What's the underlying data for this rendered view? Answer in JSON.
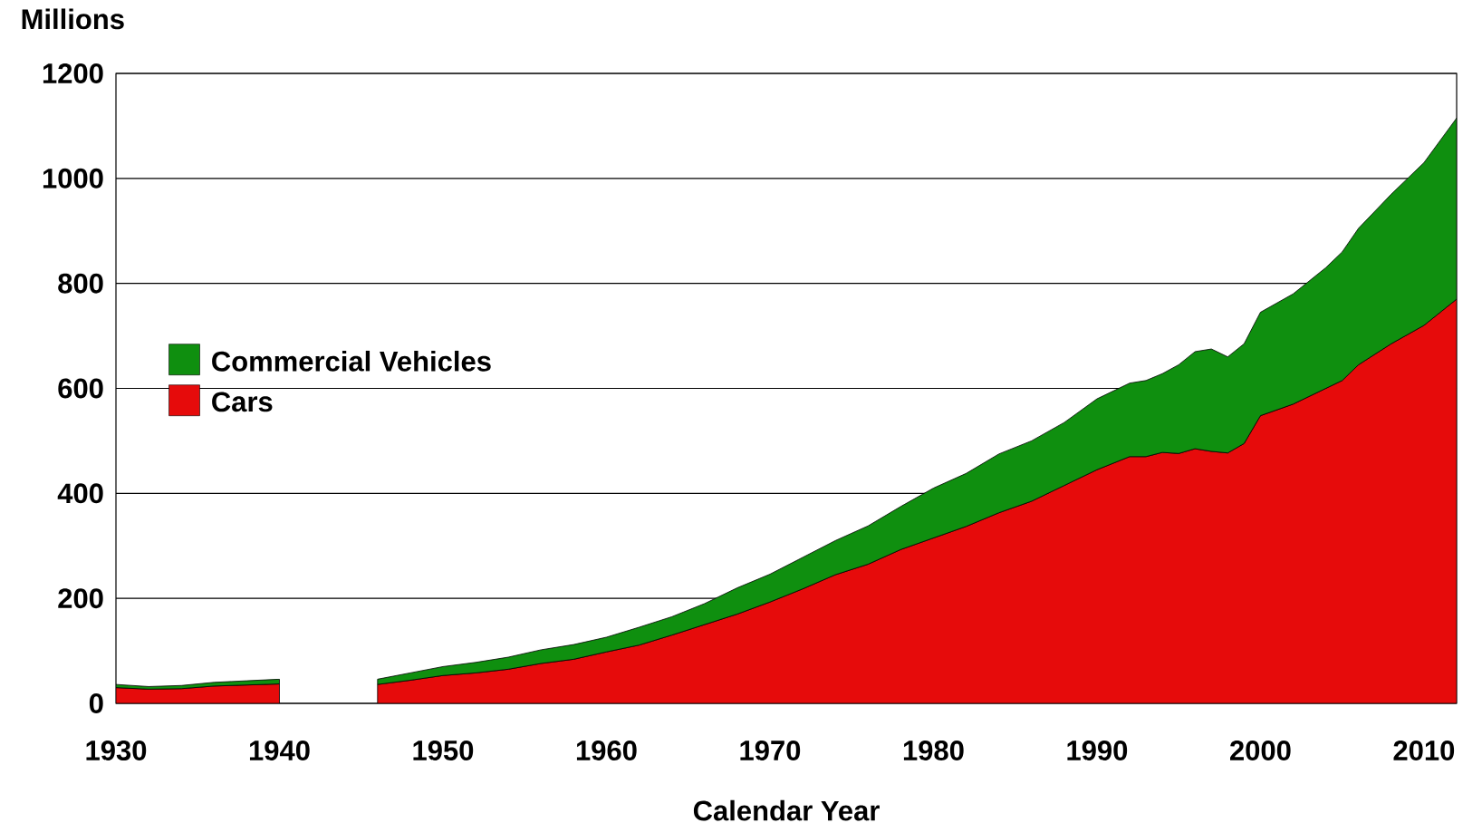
{
  "chart_data": {
    "type": "area",
    "stacked": true,
    "ylabel": "Millions",
    "xlabel": "Calendar Year",
    "x": [
      1930,
      1932,
      1934,
      1936,
      1938,
      1940,
      1943,
      1946,
      1948,
      1950,
      1952,
      1954,
      1956,
      1958,
      1960,
      1962,
      1964,
      1966,
      1968,
      1970,
      1972,
      1974,
      1976,
      1978,
      1980,
      1982,
      1984,
      1986,
      1988,
      1990,
      1992,
      1993,
      1994,
      1995,
      1996,
      1997,
      1998,
      1999,
      2000,
      2002,
      2004,
      2005,
      2006,
      2008,
      2010,
      2012
    ],
    "series": [
      {
        "name": "Cars",
        "color": "#e60b0b",
        "values": [
          30,
          27,
          28,
          33,
          35,
          37,
          null,
          36,
          44,
          53,
          58,
          65,
          76,
          84,
          98,
          111,
          130,
          150,
          170,
          193,
          218,
          245,
          265,
          293,
          315,
          337,
          363,
          385,
          415,
          445,
          470,
          470,
          478,
          476,
          485,
          480,
          477,
          495,
          548,
          570,
          600,
          615,
          645,
          685,
          720,
          770
        ]
      },
      {
        "name": "Commercial Vehicles",
        "color": "#0f8f0f",
        "values": [
          6,
          5,
          6,
          7,
          8,
          9,
          null,
          10,
          14,
          17,
          20,
          23,
          26,
          28,
          28,
          34,
          35,
          40,
          50,
          53,
          60,
          65,
          73,
          82,
          95,
          101,
          112,
          115,
          120,
          135,
          140,
          145,
          150,
          169,
          185,
          195,
          183,
          190,
          197,
          210,
          230,
          245,
          260,
          285,
          310,
          345
        ]
      }
    ],
    "xlim": [
      1930,
      2012
    ],
    "xticks": [
      1930,
      1940,
      1950,
      1960,
      1970,
      1980,
      1990,
      2000,
      2010
    ],
    "ylim": [
      0,
      1200
    ],
    "yticks": [
      0,
      200,
      400,
      600,
      800,
      1000,
      1200
    ],
    "grid": "y",
    "legend": "left"
  }
}
